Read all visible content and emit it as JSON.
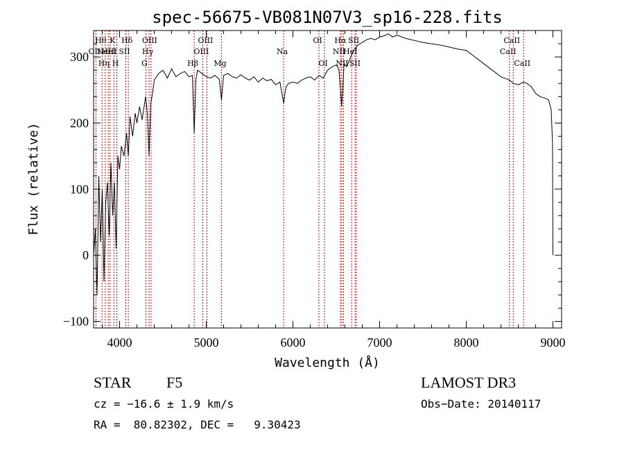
{
  "chart_data": {
    "type": "line",
    "title": "spec-56675-VB081N07V3_sp16-228.fits",
    "xlabel": "Wavelength (Å)",
    "ylabel": "Flux (relative)",
    "xlim": [
      3700,
      9100
    ],
    "ylim": [
      -110,
      340
    ],
    "xticks": [
      4000,
      5000,
      6000,
      7000,
      8000,
      9000
    ],
    "yticks": [
      -100,
      0,
      100,
      200,
      300
    ],
    "series": [
      {
        "name": "flux",
        "x": [
          3700,
          3720,
          3740,
          3760,
          3780,
          3800,
          3820,
          3840,
          3860,
          3880,
          3900,
          3920,
          3940,
          3960,
          3980,
          4000,
          4020,
          4050,
          4080,
          4101,
          4120,
          4150,
          4180,
          4200,
          4230,
          4260,
          4300,
          4320,
          4340,
          4360,
          4380,
          4400,
          4450,
          4500,
          4550,
          4600,
          4650,
          4700,
          4750,
          4800,
          4840,
          4861,
          4880,
          4900,
          4950,
          5000,
          5050,
          5100,
          5150,
          5175,
          5200,
          5250,
          5300,
          5350,
          5400,
          5450,
          5500,
          5550,
          5600,
          5650,
          5700,
          5750,
          5800,
          5850,
          5893,
          5920,
          5950,
          6000,
          6050,
          6100,
          6150,
          6200,
          6250,
          6300,
          6350,
          6400,
          6450,
          6500,
          6530,
          6563,
          6590,
          6620,
          6650,
          6700,
          6750,
          6800,
          6850,
          6900,
          6950,
          7000,
          7050,
          7100,
          7150,
          7200,
          7300,
          7400,
          7500,
          7600,
          7700,
          7800,
          7900,
          8000,
          8100,
          8200,
          8300,
          8400,
          8498,
          8542,
          8600,
          8662,
          8700,
          8750,
          8800,
          8850,
          8900,
          8950,
          8980,
          8995,
          9000
        ],
        "values": [
          0,
          40,
          -60,
          120,
          20,
          100,
          -40,
          80,
          110,
          30,
          140,
          60,
          110,
          10,
          150,
          130,
          165,
          150,
          185,
          150,
          210,
          180,
          215,
          200,
          225,
          205,
          240,
          215,
          150,
          230,
          245,
          265,
          275,
          280,
          268,
          282,
          270,
          275,
          278,
          270,
          272,
          185,
          265,
          280,
          275,
          270,
          268,
          272,
          266,
          235,
          272,
          275,
          270,
          268,
          273,
          268,
          265,
          270,
          262,
          268,
          264,
          266,
          258,
          262,
          230,
          255,
          260,
          262,
          260,
          265,
          268,
          270,
          265,
          272,
          268,
          280,
          285,
          288,
          282,
          225,
          290,
          285,
          295,
          310,
          318,
          322,
          326,
          328,
          326,
          330,
          332,
          335,
          330,
          333,
          328,
          325,
          322,
          320,
          318,
          315,
          312,
          310,
          300,
          290,
          280,
          270,
          265,
          260,
          258,
          262,
          260,
          255,
          245,
          240,
          238,
          235,
          220,
          170,
          0
        ]
      }
    ],
    "line_markers": [
      {
        "wavelength": 3727,
        "label": "OII",
        "row": 2
      },
      {
        "wavelength": 3798,
        "label": "Hθ",
        "row": 1
      },
      {
        "wavelength": 3835,
        "label": "Hη",
        "row": 3
      },
      {
        "wavelength": 3869,
        "label": "NeIII",
        "row": 2
      },
      {
        "wavelength": 3889,
        "label": "HeI",
        "row": 2
      },
      {
        "wavelength": 3934,
        "label": "K",
        "row": 1
      },
      {
        "wavelength": 3968,
        "label": "H",
        "row": 3
      },
      {
        "wavelength": 4072,
        "label": "SII",
        "row": 2
      },
      {
        "wavelength": 4101,
        "label": "Hδ",
        "row": 1
      },
      {
        "wavelength": 4304,
        "label": "G",
        "row": 3
      },
      {
        "wavelength": 4340,
        "label": "Hγ",
        "row": 2
      },
      {
        "wavelength": 4363,
        "label": "OIII",
        "row": 1
      },
      {
        "wavelength": 4861,
        "label": "Hβ",
        "row": 3
      },
      {
        "wavelength": 4959,
        "label": "OIII",
        "row": 2
      },
      {
        "wavelength": 5007,
        "label": "OIII",
        "row": 1
      },
      {
        "wavelength": 5175,
        "label": "Mg",
        "row": 3
      },
      {
        "wavelength": 5893,
        "label": "Na",
        "row": 2
      },
      {
        "wavelength": 6300,
        "label": "OI",
        "row": 1
      },
      {
        "wavelength": 6364,
        "label": "OI",
        "row": 3
      },
      {
        "wavelength": 6548,
        "label": "NII",
        "row": 2
      },
      {
        "wavelength": 6563,
        "label": "Hα",
        "row": 1
      },
      {
        "wavelength": 6583,
        "label": "NII",
        "row": 3
      },
      {
        "wavelength": 6678,
        "label": "HeI",
        "row": 2
      },
      {
        "wavelength": 6717,
        "label": "SII",
        "row": 1
      },
      {
        "wavelength": 6731,
        "label": "SII",
        "row": 3
      },
      {
        "wavelength": 8498,
        "label": "CaII",
        "row": 2
      },
      {
        "wavelength": 8542,
        "label": "CaII",
        "row": 1
      },
      {
        "wavelength": 8662,
        "label": "CaII",
        "row": 3
      }
    ]
  },
  "footer": {
    "object_class": "STAR",
    "subclass": "F5",
    "survey": "LAMOST DR3",
    "cz": "cz = −16.6 ± 1.9 km/s",
    "obs_date": "Obs−Date: 20140117",
    "coords": "RA =  80.82302, DEC =   9.30423"
  },
  "colors": {
    "spectrum": "#000000",
    "marker": "#c00000"
  }
}
